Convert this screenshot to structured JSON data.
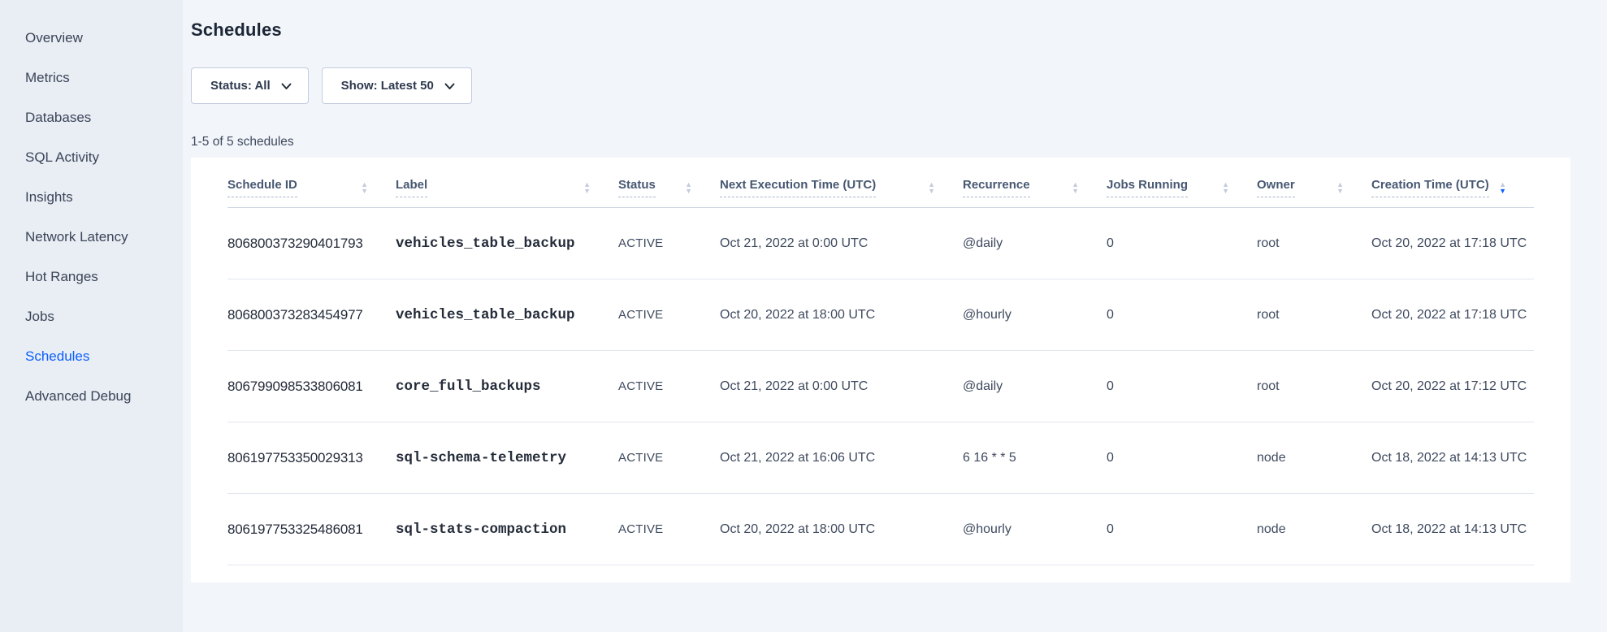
{
  "colors": {
    "accent": "#0b5fff",
    "text": "#475872"
  },
  "icons": {
    "sort_asc_icon": "▲",
    "sort_desc_icon": "▼",
    "chevron_down_icon": "⌄"
  },
  "sidebar": {
    "items": [
      {
        "label": "Overview",
        "active": false
      },
      {
        "label": "Metrics",
        "active": false
      },
      {
        "label": "Databases",
        "active": false
      },
      {
        "label": "SQL Activity",
        "active": false
      },
      {
        "label": "Insights",
        "active": false
      },
      {
        "label": "Network Latency",
        "active": false
      },
      {
        "label": "Hot Ranges",
        "active": false
      },
      {
        "label": "Jobs",
        "active": false
      },
      {
        "label": "Schedules",
        "active": true
      },
      {
        "label": "Advanced Debug",
        "active": false
      }
    ]
  },
  "header": {
    "title": "Schedules"
  },
  "filters": {
    "status_label": "Status: All",
    "show_label": "Show: Latest 50"
  },
  "results_count": "1-5 of 5 schedules",
  "table": {
    "columns": [
      {
        "label": "Schedule ID",
        "sort": "none"
      },
      {
        "label": "Label",
        "sort": "none"
      },
      {
        "label": "Status",
        "sort": "none"
      },
      {
        "label": "Next Execution Time (UTC)",
        "sort": "none"
      },
      {
        "label": "Recurrence",
        "sort": "none"
      },
      {
        "label": "Jobs Running",
        "sort": "none"
      },
      {
        "label": "Owner",
        "sort": "none"
      },
      {
        "label": "Creation Time (UTC)",
        "sort": "desc"
      }
    ],
    "rows": [
      {
        "id": "806800373290401793",
        "label": "vehicles_table_backup",
        "status": "ACTIVE",
        "next_execution": "Oct 21, 2022 at 0:00 UTC",
        "recurrence": "@daily",
        "jobs_running": "0",
        "owner": "root",
        "creation_time": "Oct 20, 2022 at 17:18 UTC"
      },
      {
        "id": "806800373283454977",
        "label": "vehicles_table_backup",
        "status": "ACTIVE",
        "next_execution": "Oct 20, 2022 at 18:00 UTC",
        "recurrence": "@hourly",
        "jobs_running": "0",
        "owner": "root",
        "creation_time": "Oct 20, 2022 at 17:18 UTC"
      },
      {
        "id": "806799098533806081",
        "label": "core_full_backups",
        "status": "ACTIVE",
        "next_execution": "Oct 21, 2022 at 0:00 UTC",
        "recurrence": "@daily",
        "jobs_running": "0",
        "owner": "root",
        "creation_time": "Oct 20, 2022 at 17:12 UTC"
      },
      {
        "id": "806197753350029313",
        "label": "sql-schema-telemetry",
        "status": "ACTIVE",
        "next_execution": "Oct 21, 2022 at 16:06 UTC",
        "recurrence": "6 16 * * 5",
        "jobs_running": "0",
        "owner": "node",
        "creation_time": "Oct 18, 2022 at 14:13 UTC"
      },
      {
        "id": "806197753325486081",
        "label": "sql-stats-compaction",
        "status": "ACTIVE",
        "next_execution": "Oct 20, 2022 at 18:00 UTC",
        "recurrence": "@hourly",
        "jobs_running": "0",
        "owner": "node",
        "creation_time": "Oct 18, 2022 at 14:13 UTC"
      }
    ]
  }
}
